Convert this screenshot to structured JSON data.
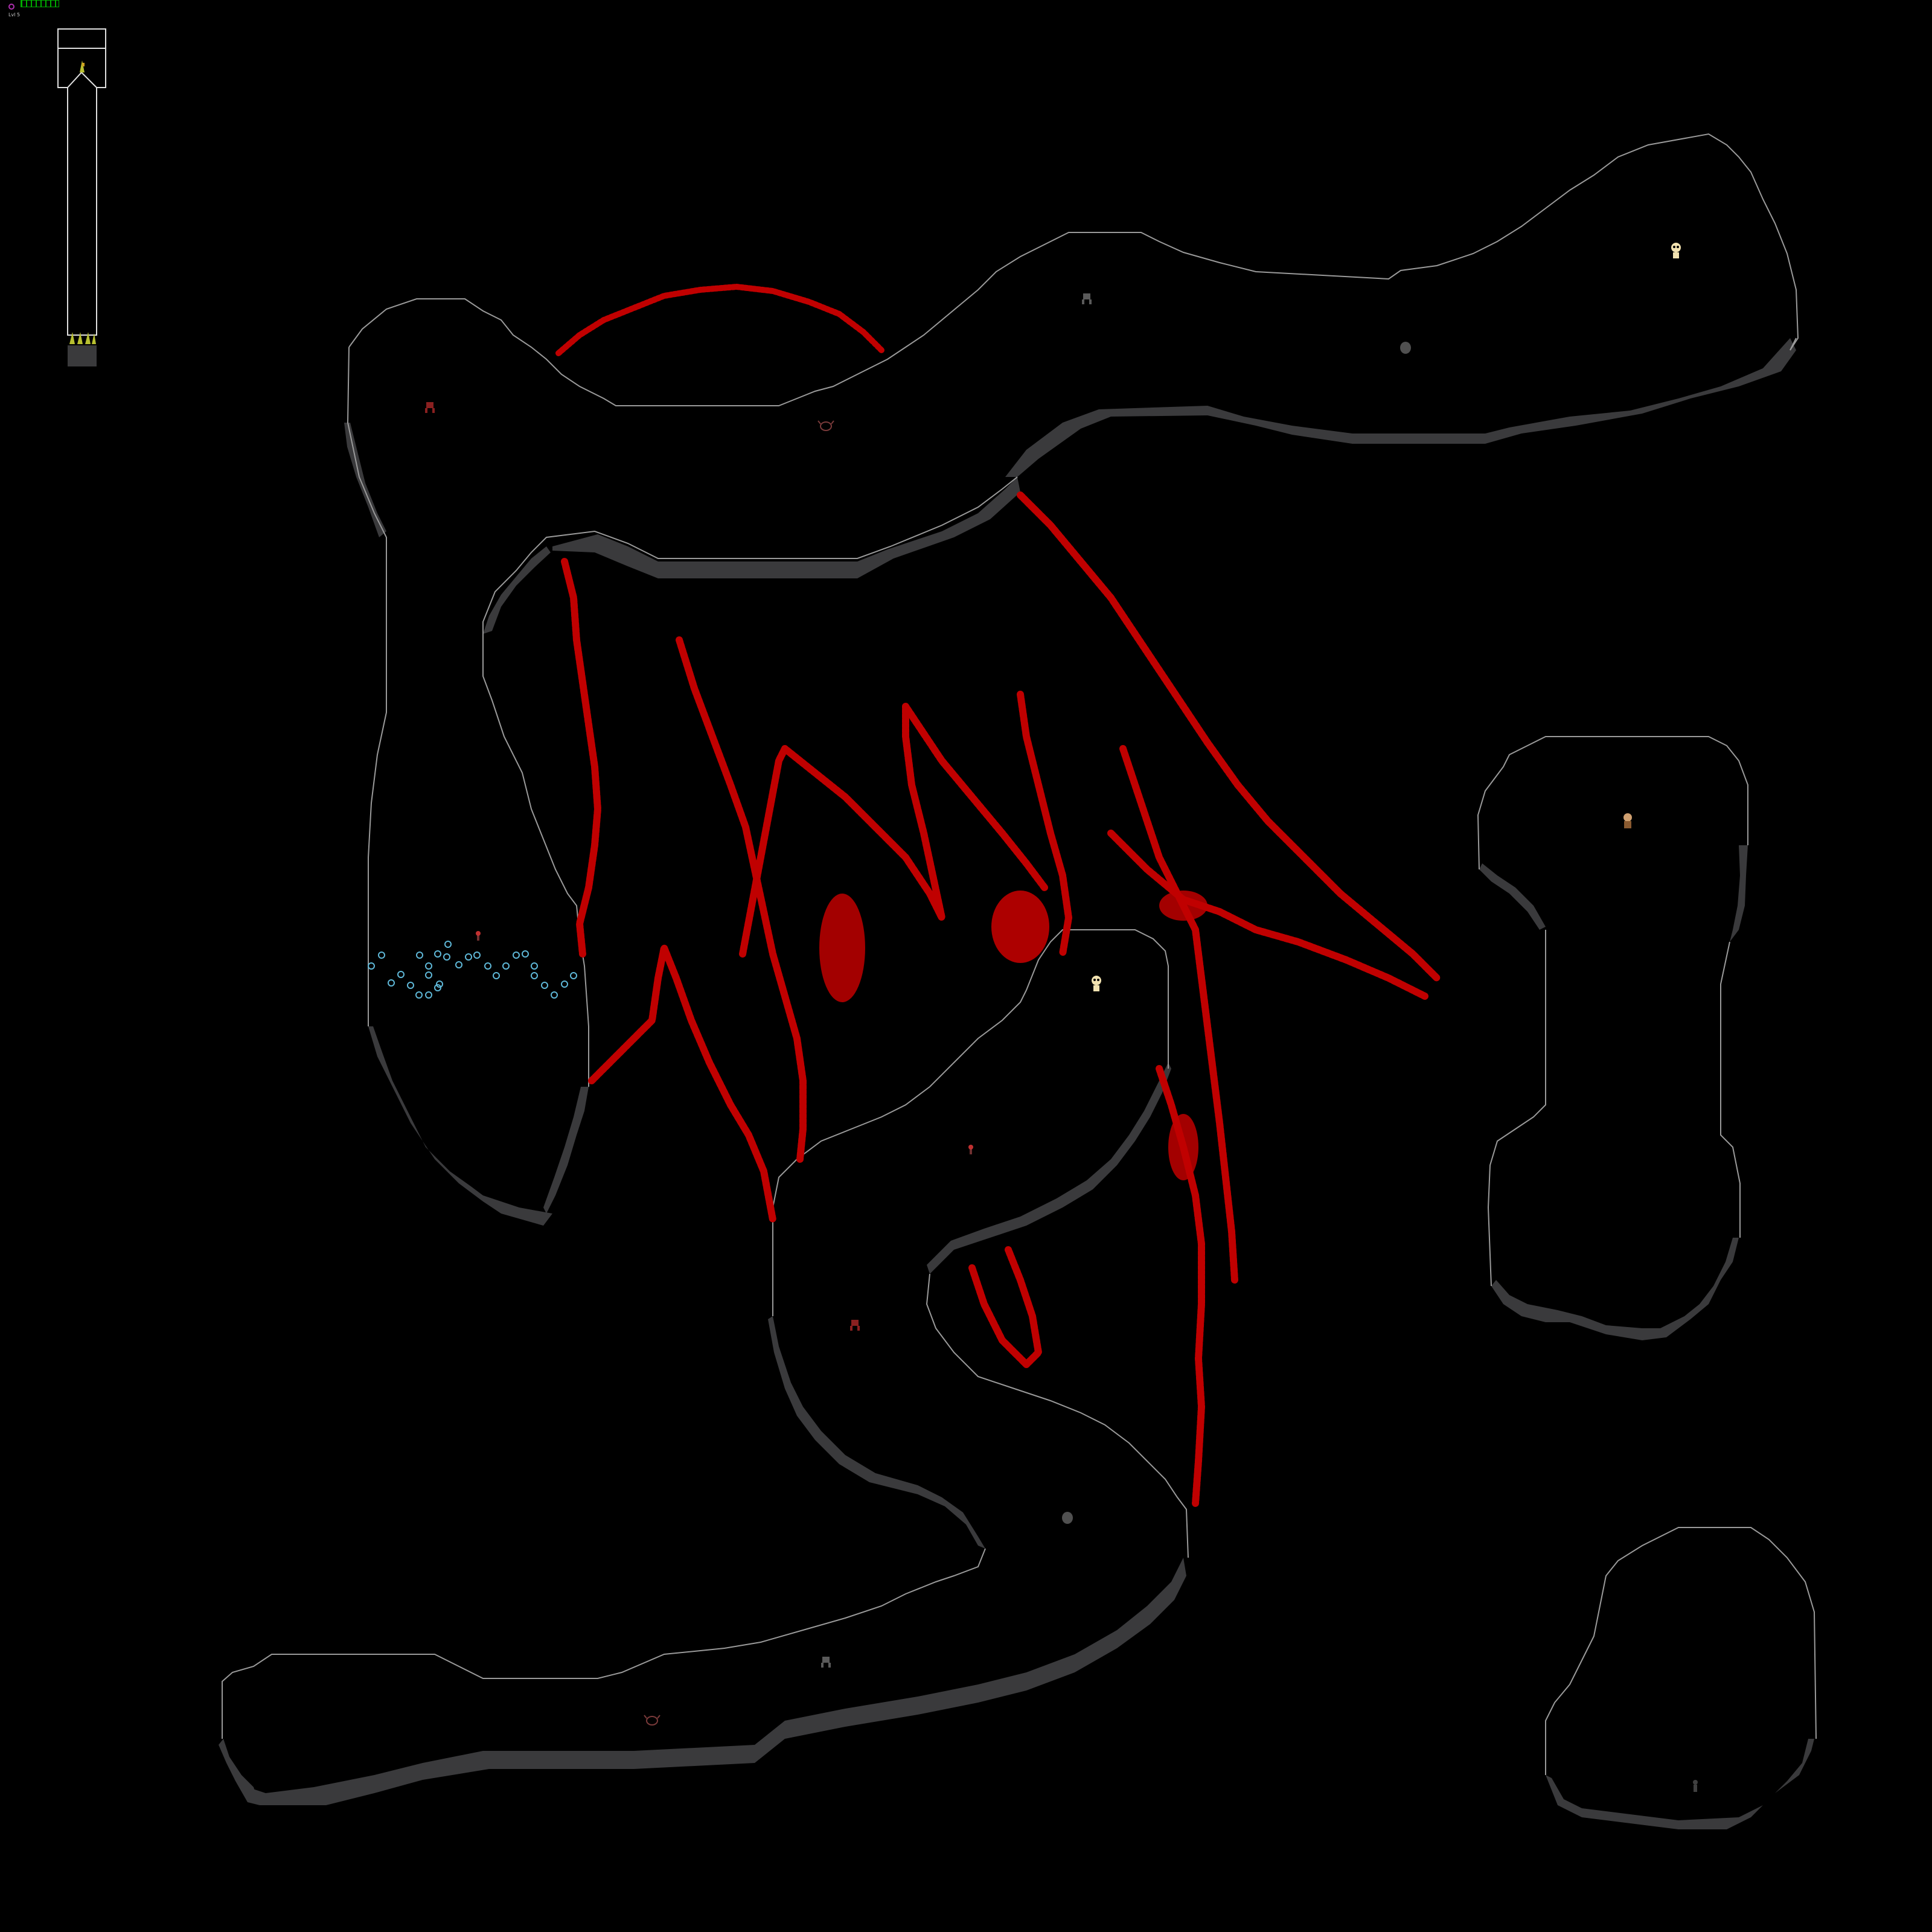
{
  "game": {
    "view": "dungeon-level-map",
    "hud": {
      "level_label": "Lvl 5",
      "bar_color": "#00aa00",
      "ring_color": "#b030b0"
    },
    "colors": {
      "background": "#000000",
      "cave_outline": "#9a9a9a",
      "cave_wall_shadow": "#3a3a3c",
      "blood": "#c00000",
      "water_glyph": "#5fb8d8",
      "tower_outline": "#e0e0e0",
      "plant_glyph": "#b8c030"
    },
    "entities": [
      {
        "kind": "skeleton",
        "icon": "skull-icon",
        "color": "#f2e2b0"
      },
      {
        "kind": "skeleton",
        "icon": "skull-icon",
        "color": "#f2e2b0"
      },
      {
        "kind": "dwarf",
        "icon": "person-icon",
        "color": "#d0a070"
      },
      {
        "kind": "imp",
        "icon": "demon-icon",
        "color": "#8a2020"
      },
      {
        "kind": "imp",
        "icon": "demon-icon",
        "color": "#8a2020"
      },
      {
        "kind": "imp",
        "icon": "demon-icon",
        "color": "#5a5a5a"
      },
      {
        "kind": "imp",
        "icon": "demon-icon",
        "color": "#5a5a5a"
      },
      {
        "kind": "crab",
        "icon": "crab-icon",
        "color": "#7a3a3a"
      },
      {
        "kind": "crab",
        "icon": "crab-icon",
        "color": "#7a3a3a"
      },
      {
        "kind": "boulder",
        "icon": "rock-icon",
        "color": "#505050"
      },
      {
        "kind": "boulder",
        "icon": "rock-icon",
        "color": "#505050"
      },
      {
        "kind": "torch",
        "icon": "flame-icon",
        "color": "#c03030"
      },
      {
        "kind": "torch",
        "icon": "flame-icon",
        "color": "#c03030"
      },
      {
        "kind": "shadow",
        "icon": "ghost-icon",
        "color": "#404040"
      }
    ]
  }
}
